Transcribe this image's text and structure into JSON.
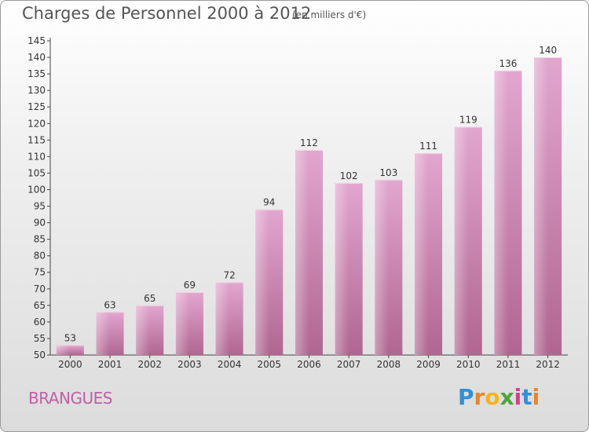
{
  "chart_data": {
    "type": "bar",
    "title": "Charges de Personnel 2000 à 2012",
    "subtitle": "(en milliers d'€)",
    "categories": [
      "2000",
      "2001",
      "2002",
      "2003",
      "2004",
      "2005",
      "2006",
      "2007",
      "2008",
      "2009",
      "2010",
      "2011",
      "2012"
    ],
    "values": [
      53,
      63,
      65,
      69,
      72,
      94,
      112,
      102,
      103,
      111,
      119,
      136,
      140
    ],
    "ylim": [
      50,
      145
    ],
    "yticks": [
      50,
      55,
      60,
      65,
      70,
      75,
      80,
      85,
      90,
      95,
      100,
      105,
      110,
      115,
      120,
      125,
      130,
      135,
      140,
      145
    ],
    "grid": false,
    "bar_color": "#d68fbc"
  },
  "commune": "BRANGUES",
  "logo": {
    "letters": [
      "P",
      "r",
      "o",
      "x",
      "i",
      "t",
      "i"
    ]
  }
}
